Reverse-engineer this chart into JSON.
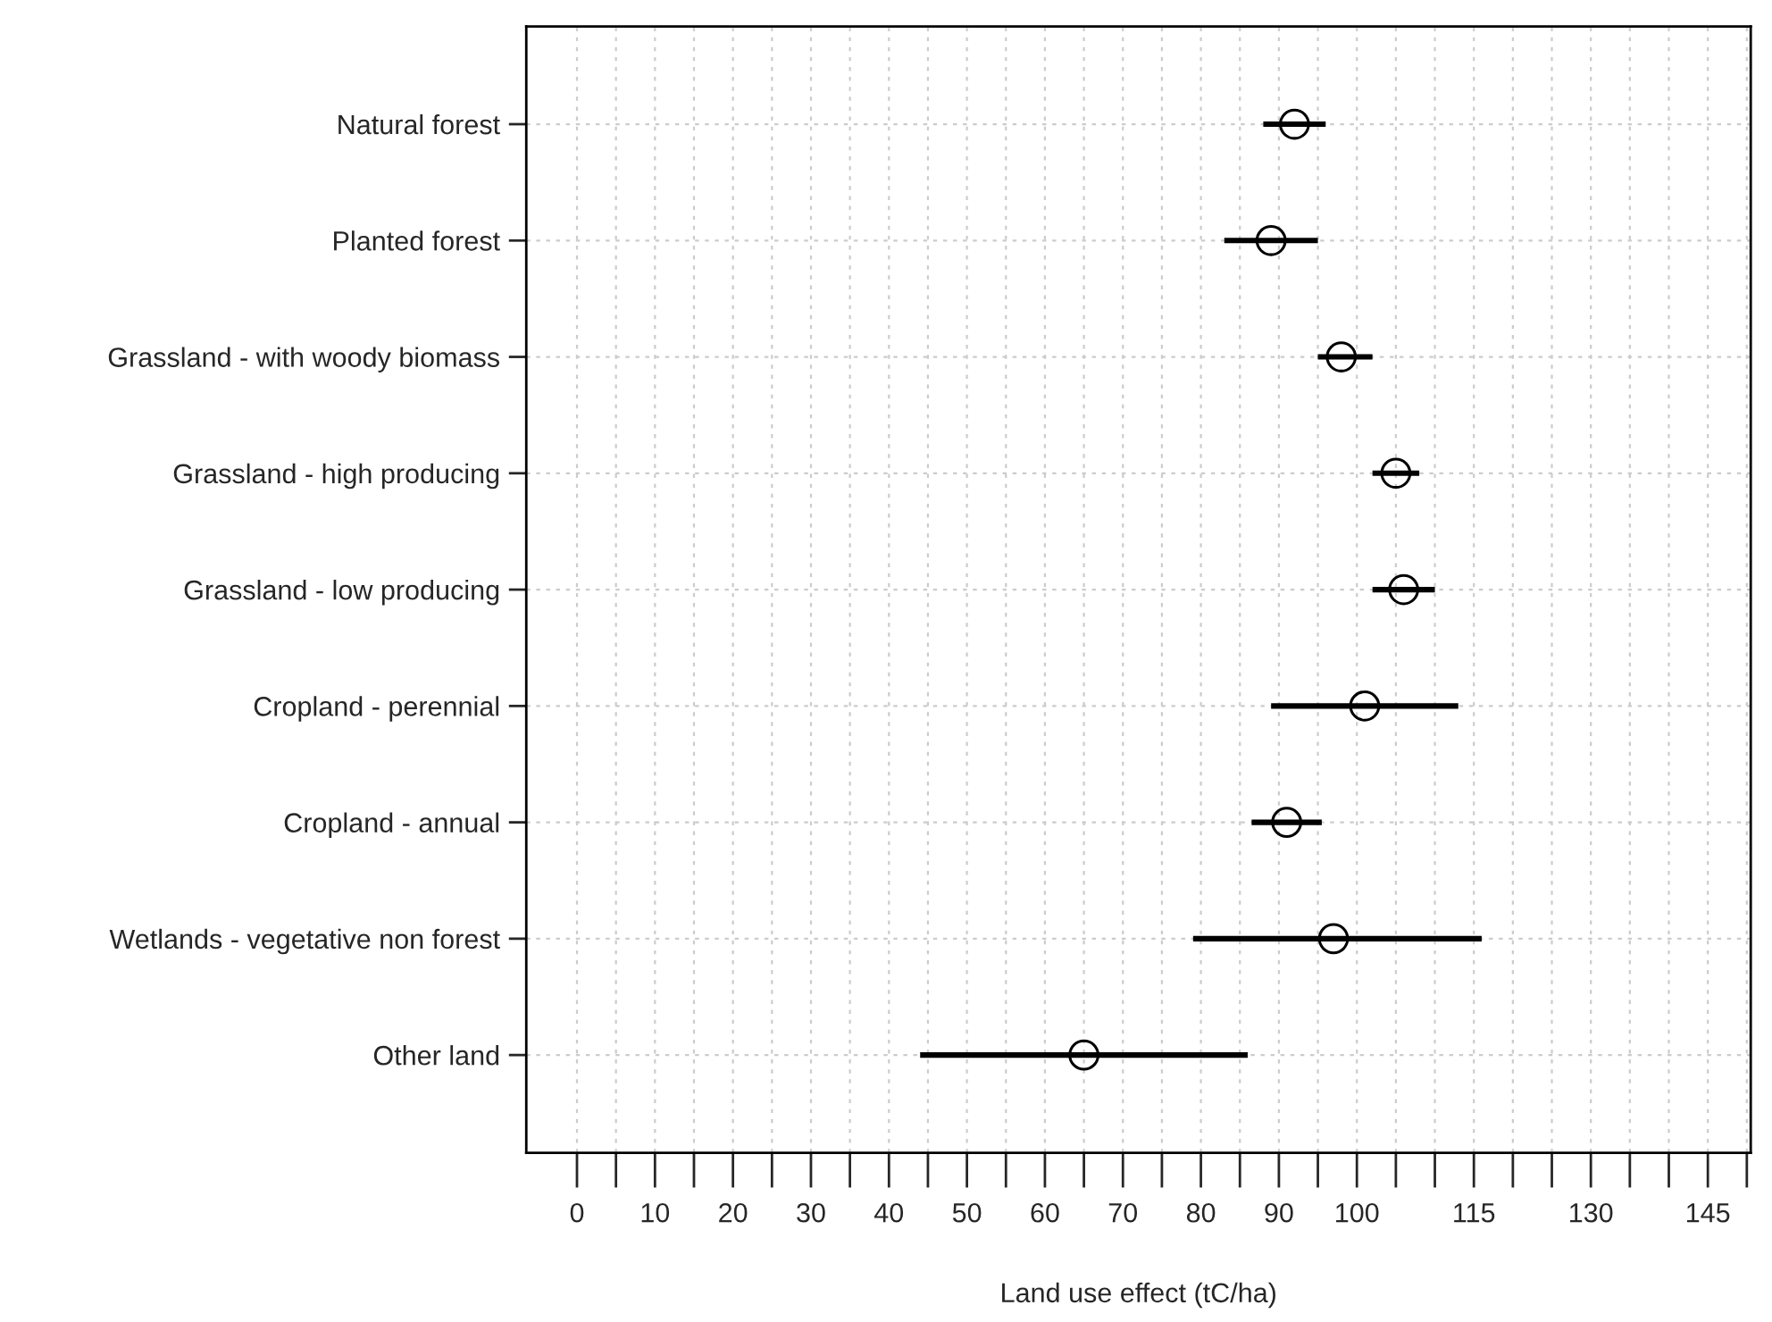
{
  "chart_data": {
    "type": "scatter",
    "orientation": "horizontal",
    "xlabel": "Land use effect (tC/ha)",
    "categories": [
      "Natural forest",
      "Planted forest",
      "Grassland - with woody biomass",
      "Grassland - high producing",
      "Grassland - low producing",
      "Cropland - perennial",
      "Cropland - annual",
      "Wetlands - vegetative non forest",
      "Other land"
    ],
    "series": [
      {
        "color": "#000000",
        "values": [
          92,
          89,
          98,
          105,
          106,
          101,
          91,
          97,
          65
        ],
        "errors": [
          [
            88,
            96
          ],
          [
            83,
            95
          ],
          [
            95,
            102
          ],
          [
            102,
            108
          ],
          [
            102,
            110
          ],
          [
            89,
            113
          ],
          [
            86.5,
            95.5
          ],
          [
            79,
            116
          ],
          [
            44,
            86
          ]
        ]
      }
    ],
    "marker": "circle",
    "grid": true,
    "legend": false,
    "xlim": [
      -6.5,
      150.5
    ],
    "xticks": [
      0,
      {
        "value": 5,
        "label": null
      },
      10,
      {
        "value": 15,
        "label": null
      },
      20,
      {
        "value": 25,
        "label": null
      },
      30,
      {
        "value": 35,
        "label": null
      },
      40,
      {
        "value": 45,
        "label": null
      },
      50,
      {
        "value": 55,
        "label": null
      },
      60,
      {
        "value": 65,
        "label": null
      },
      70,
      {
        "value": 75,
        "label": null
      },
      80,
      {
        "value": 85,
        "label": null
      },
      90,
      {
        "value": 95,
        "label": null
      },
      100,
      {
        "value": 105,
        "label": null
      },
      {
        "value": 110,
        "label": null
      },
      115,
      {
        "value": 120,
        "label": null
      },
      {
        "value": 125,
        "label": null
      },
      130,
      {
        "value": 135,
        "label": null
      },
      {
        "value": 140,
        "label": null
      },
      145,
      {
        "value": 150,
        "label": null
      }
    ]
  }
}
